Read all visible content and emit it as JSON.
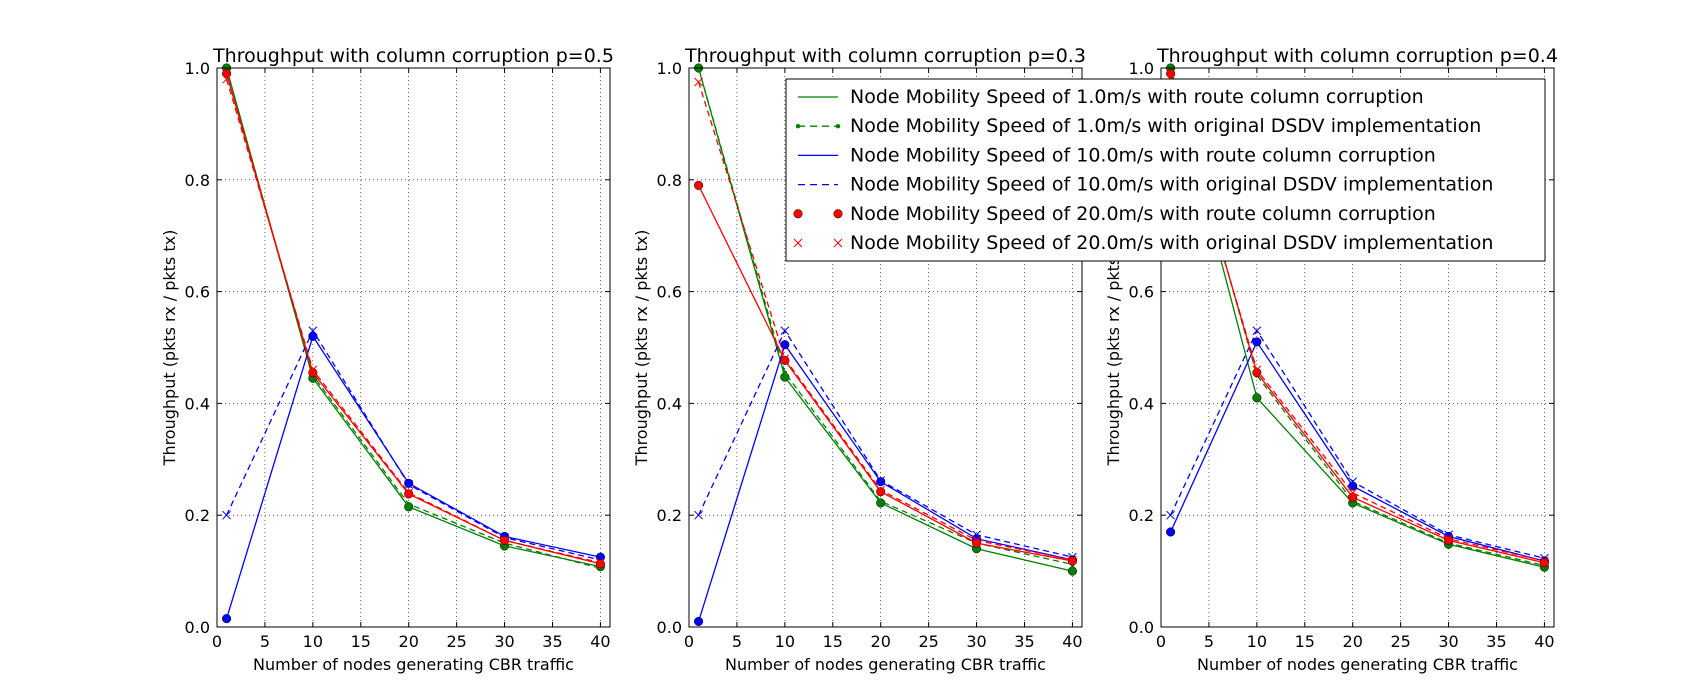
{
  "colors": {
    "green": "#008000",
    "blue": "#0000ff",
    "red": "#ff0000",
    "grid": "#000000"
  },
  "chart_data": [
    {
      "type": "line",
      "title": "Throughput with column corruption p=0.5",
      "xlabel": "Number of nodes generating CBR traffic",
      "ylabel": "Throughput (pkts rx / pkts tx)",
      "xlim": [
        0,
        41
      ],
      "ylim": [
        0.0,
        1.0
      ],
      "xticks": [
        "0",
        "5",
        "10",
        "15",
        "20",
        "25",
        "30",
        "35",
        "40"
      ],
      "yticks": [
        "0.0",
        "0.2",
        "0.4",
        "0.6",
        "0.8",
        "1.0"
      ],
      "grid": true,
      "x": [
        1,
        10,
        20,
        30,
        40
      ],
      "series": [
        {
          "name": "Node Mobility Speed of 1.0m/s with route column corruption",
          "values": [
            1.0,
            0.445,
            0.215,
            0.145,
            0.108
          ]
        },
        {
          "name": "Node Mobility Speed of 1.0m/s with original DSDV implementation",
          "values": [
            0.99,
            0.45,
            0.22,
            0.15,
            0.105
          ]
        },
        {
          "name": "Node Mobility Speed of 10.0m/s with route column corruption",
          "values": [
            0.015,
            0.52,
            0.257,
            0.162,
            0.125
          ]
        },
        {
          "name": "Node Mobility Speed of 10.0m/s with original DSDV implementation",
          "values": [
            0.2,
            0.53,
            0.255,
            0.16,
            0.12
          ]
        },
        {
          "name": "Node Mobility Speed of 20.0m/s with route column corruption",
          "values": [
            0.99,
            0.455,
            0.238,
            0.155,
            0.113
          ]
        },
        {
          "name": "Node Mobility Speed of 20.0m/s with original DSDV implementation",
          "values": [
            0.98,
            0.46,
            0.24,
            0.155,
            0.115
          ]
        }
      ]
    },
    {
      "type": "line",
      "title": "Throughput with column corruption p=0.3",
      "xlabel": "Number of nodes generating CBR traffic",
      "ylabel": "Throughput (pkts rx / pkts tx)",
      "xlim": [
        0,
        41
      ],
      "ylim": [
        0.0,
        1.0
      ],
      "xticks": [
        "0",
        "5",
        "10",
        "15",
        "20",
        "25",
        "30",
        "35",
        "40"
      ],
      "yticks": [
        "0.0",
        "0.2",
        "0.4",
        "0.6",
        "0.8",
        "1.0"
      ],
      "grid": true,
      "x": [
        1,
        10,
        20,
        30,
        40
      ],
      "series": [
        {
          "name": "Node Mobility Speed of 1.0m/s with route column corruption",
          "values": [
            1.0,
            0.447,
            0.222,
            0.14,
            0.1
          ]
        },
        {
          "name": "Node Mobility Speed of 1.0m/s with original DSDV implementation",
          "values": [
            1.0,
            0.455,
            0.225,
            0.15,
            0.112
          ]
        },
        {
          "name": "Node Mobility Speed of 10.0m/s with route column corruption",
          "values": [
            0.01,
            0.505,
            0.26,
            0.158,
            0.12
          ]
        },
        {
          "name": "Node Mobility Speed of 10.0m/s with original DSDV implementation",
          "values": [
            0.2,
            0.53,
            0.262,
            0.165,
            0.125
          ]
        },
        {
          "name": "Node Mobility Speed of 20.0m/s with route column corruption",
          "values": [
            0.79,
            0.477,
            0.242,
            0.15,
            0.118
          ]
        },
        {
          "name": "Node Mobility Speed of 20.0m/s with original DSDV implementation",
          "values": [
            0.975,
            0.48,
            0.245,
            0.155,
            0.12
          ]
        }
      ]
    },
    {
      "type": "line",
      "title": "Throughput with column corruption p=0.4",
      "xlabel": "Number of nodes generating CBR traffic",
      "ylabel": "Throughput (pkts rx / pkts tx)",
      "xlim": [
        0,
        41
      ],
      "ylim": [
        0.0,
        1.0
      ],
      "xticks": [
        "0",
        "5",
        "10",
        "15",
        "20",
        "25",
        "30",
        "35",
        "40"
      ],
      "yticks": [
        "0.0",
        "0.2",
        "0.4",
        "0.6",
        "0.8",
        "1.0"
      ],
      "grid": true,
      "x": [
        1,
        10,
        20,
        30,
        40
      ],
      "series": [
        {
          "name": "Node Mobility Speed of 1.0m/s with route column corruption",
          "values": [
            1.0,
            0.41,
            0.222,
            0.148,
            0.107
          ]
        },
        {
          "name": "Node Mobility Speed of 1.0m/s with original DSDV implementation",
          "values": [
            1.0,
            0.45,
            0.225,
            0.15,
            0.11
          ]
        },
        {
          "name": "Node Mobility Speed of 10.0m/s with route column corruption",
          "values": [
            0.17,
            0.51,
            0.252,
            0.162,
            0.118
          ]
        },
        {
          "name": "Node Mobility Speed of 10.0m/s with original DSDV implementation",
          "values": [
            0.2,
            0.53,
            0.26,
            0.165,
            0.123
          ]
        },
        {
          "name": "Node Mobility Speed of 20.0m/s with route column corruption",
          "values": [
            0.99,
            0.455,
            0.232,
            0.155,
            0.115
          ]
        },
        {
          "name": "Node Mobility Speed of 20.0m/s with original DSDV implementation",
          "values": [
            0.98,
            0.46,
            0.24,
            0.158,
            0.118
          ]
        }
      ]
    }
  ],
  "legend": {
    "placement": "top-right of third subplot, overlapping second",
    "entries": [
      {
        "label": "Node Mobility Speed of 1.0m/s with route column corruption",
        "color": "#008000",
        "line": "solid",
        "marker": "none"
      },
      {
        "label": "Node Mobility Speed of 1.0m/s with original DSDV implementation",
        "color": "#008000",
        "line": "dashed",
        "marker": "dot"
      },
      {
        "label": "Node Mobility Speed of 10.0m/s with route column corruption",
        "color": "#0000ff",
        "line": "solid",
        "marker": "none"
      },
      {
        "label": "Node Mobility Speed of 10.0m/s with original DSDV implementation",
        "color": "#0000ff",
        "line": "dashed",
        "marker": "none"
      },
      {
        "label": "Node Mobility Speed of 20.0m/s with route column corruption",
        "color": "#ff0000",
        "line": "none",
        "marker": "circle"
      },
      {
        "label": "Node Mobility Speed of 20.0m/s with original DSDV implementation",
        "color": "#ff0000",
        "line": "none",
        "marker": "x"
      }
    ]
  },
  "series_styles": [
    {
      "color": "#008000",
      "dash": "none",
      "marker": "circle"
    },
    {
      "color": "#008000",
      "dash": "dashed",
      "marker": "smalldot"
    },
    {
      "color": "#0000ff",
      "dash": "none",
      "marker": "circle"
    },
    {
      "color": "#0000ff",
      "dash": "dashed",
      "marker": "x"
    },
    {
      "color": "#ff0000",
      "dash": "none",
      "marker": "circle"
    },
    {
      "color": "#ff0000",
      "dash": "dashed",
      "marker": "x"
    }
  ]
}
